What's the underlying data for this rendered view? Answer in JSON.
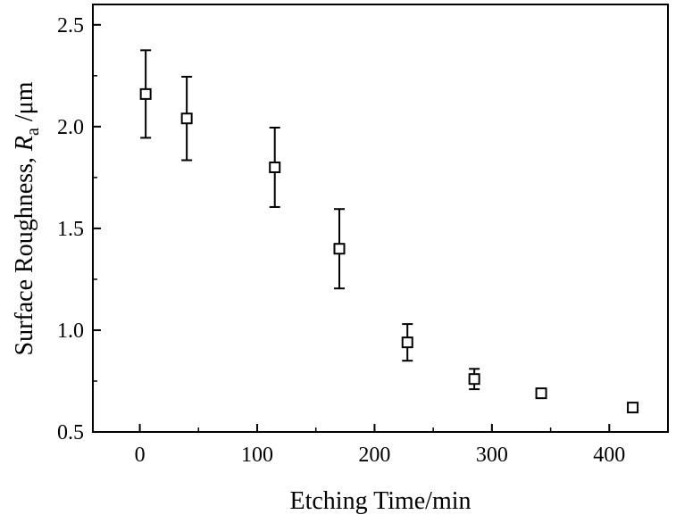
{
  "chart_data": {
    "type": "scatter",
    "xlabel": "Etching Time/min",
    "ylabel": {
      "prefix": "Surface Roughness, ",
      "symbol": "R",
      "subscript": "a",
      "suffix": " /μm"
    },
    "xlim": [
      -40,
      450
    ],
    "ylim": [
      0.5,
      2.6
    ],
    "x_ticks": [
      0,
      100,
      200,
      300,
      400
    ],
    "x_tick_labels": [
      "0",
      "100",
      "200",
      "300",
      "400"
    ],
    "y_ticks": [
      0.5,
      1.0,
      1.5,
      2.0,
      2.5
    ],
    "y_tick_labels": [
      "0.5",
      "1.0",
      "1.5",
      "2.0",
      "2.5"
    ],
    "grid": false,
    "marker": "open-square",
    "series": [
      {
        "points": [
          {
            "x": 5,
            "y": 2.16,
            "err": 0.215
          },
          {
            "x": 40,
            "y": 2.04,
            "err": 0.205
          },
          {
            "x": 115,
            "y": 1.8,
            "err": 0.195
          },
          {
            "x": 170,
            "y": 1.4,
            "err": 0.195
          },
          {
            "x": 228,
            "y": 0.94,
            "err": 0.09
          },
          {
            "x": 285,
            "y": 0.76,
            "err": 0.05
          },
          {
            "x": 342,
            "y": 0.69,
            "err": 0.015
          },
          {
            "x": 420,
            "y": 0.62,
            "err": 0.012
          }
        ]
      }
    ]
  }
}
